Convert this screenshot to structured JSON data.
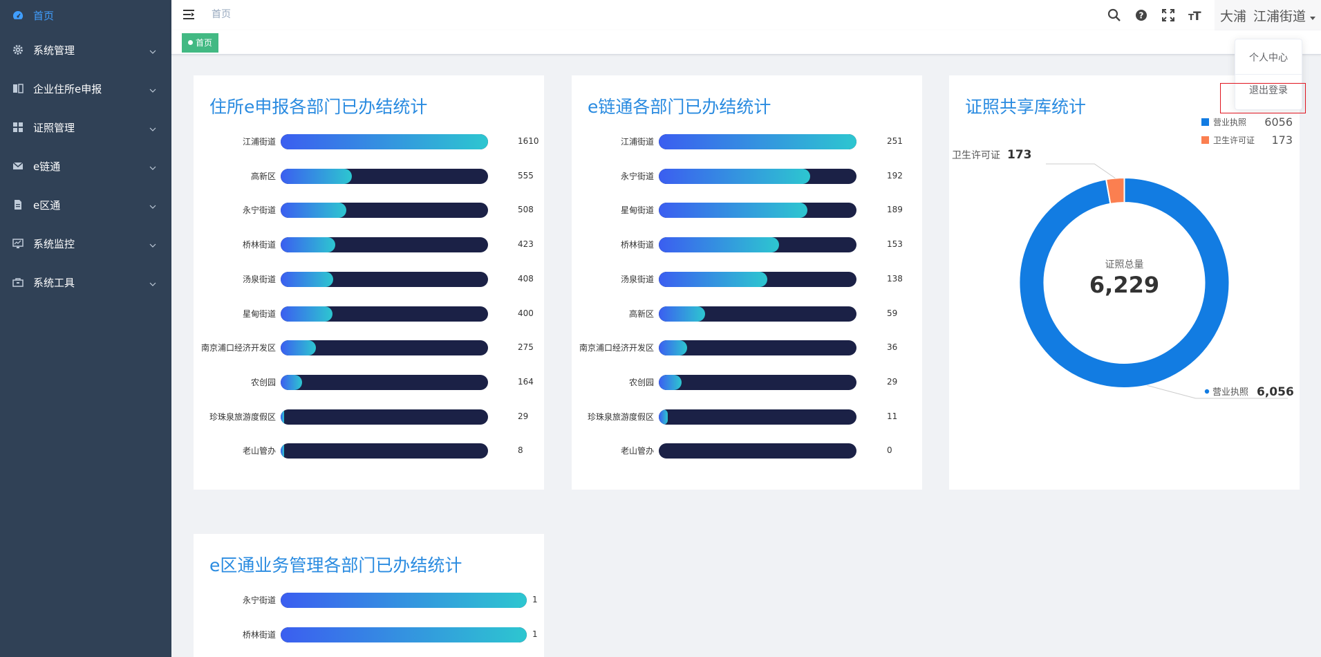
{
  "sidebar": {
    "items": [
      {
        "label": "首页",
        "icon": "dashboard-icon",
        "active": true,
        "has_children": false
      },
      {
        "label": "系统管理",
        "icon": "gear-icon",
        "has_children": true
      },
      {
        "label": "企业住所e申报",
        "icon": "book-icon",
        "has_children": true
      },
      {
        "label": "证照管理",
        "icon": "grid-icon",
        "has_children": true
      },
      {
        "label": "e链通",
        "icon": "mail-icon",
        "has_children": true
      },
      {
        "label": "e区通",
        "icon": "document-icon",
        "has_children": true
      },
      {
        "label": "系统监控",
        "icon": "monitor-icon",
        "has_children": true
      },
      {
        "label": "系统工具",
        "icon": "toolbox-icon",
        "has_children": true
      }
    ]
  },
  "navbar": {
    "breadcrumb": "首页",
    "user_area": "大浦",
    "user_name": "江浦街道",
    "icons": [
      "search-icon",
      "question-icon",
      "fullscreen-icon",
      "font-size-icon"
    ]
  },
  "tags_view": {
    "active_tag": "首页"
  },
  "dropdown": {
    "items": [
      "个人中心",
      "退出登录"
    ]
  },
  "colors": {
    "accent": "#409eff",
    "sidebar_bg": "#304156",
    "tag_green": "#42b983",
    "title_blue": "#2a8be0",
    "track": "#1b2146",
    "donut_blue": "#127ce2",
    "donut_orange": "#fb7f50"
  },
  "cards": {
    "card1": {
      "title": "住所e申报各部门已办结统计",
      "chart_data": {
        "type": "bar",
        "categories": [
          "江浦街道",
          "高新区",
          "永宁街道",
          "桥林街道",
          "汤泉街道",
          "星甸街道",
          "南京浦口经济开发区",
          "农创园",
          "珍珠泉旅游度假区",
          "老山管办"
        ],
        "values": [
          1610,
          555,
          508,
          423,
          408,
          400,
          275,
          164,
          29,
          8
        ],
        "max": 1610
      }
    },
    "card2": {
      "title": "e链通各部门已办结统计",
      "chart_data": {
        "type": "bar",
        "categories": [
          "江浦街道",
          "永宁街道",
          "星甸街道",
          "桥林街道",
          "汤泉街道",
          "高新区",
          "南京浦口经济开发区",
          "农创园",
          "珍珠泉旅游度假区",
          "老山管办"
        ],
        "values": [
          251,
          192,
          189,
          153,
          138,
          59,
          36,
          29,
          11,
          0
        ],
        "max": 251
      }
    },
    "card3": {
      "title": "证照共享库统计",
      "chart_data": {
        "type": "pie",
        "center_label": "证照总量",
        "center_value": "6,229",
        "slices": [
          {
            "name": "营业执照",
            "value": 6056,
            "label_value": "6,056",
            "color": "#127ce2"
          },
          {
            "name": "卫生许可证",
            "value": 173,
            "label_value": "173",
            "color": "#fb7f50"
          }
        ],
        "legend": [
          {
            "name": "营业执照",
            "value": "6056"
          },
          {
            "name": "卫生许可证",
            "value": "173"
          }
        ],
        "legend_position": "top-right"
      }
    },
    "card4": {
      "title": "e区通业务管理各部门已办结统计",
      "chart_data": {
        "type": "bar",
        "categories": [
          "永宁街道",
          "桥林街道"
        ],
        "values": [
          1,
          1
        ],
        "max": 1
      }
    }
  }
}
